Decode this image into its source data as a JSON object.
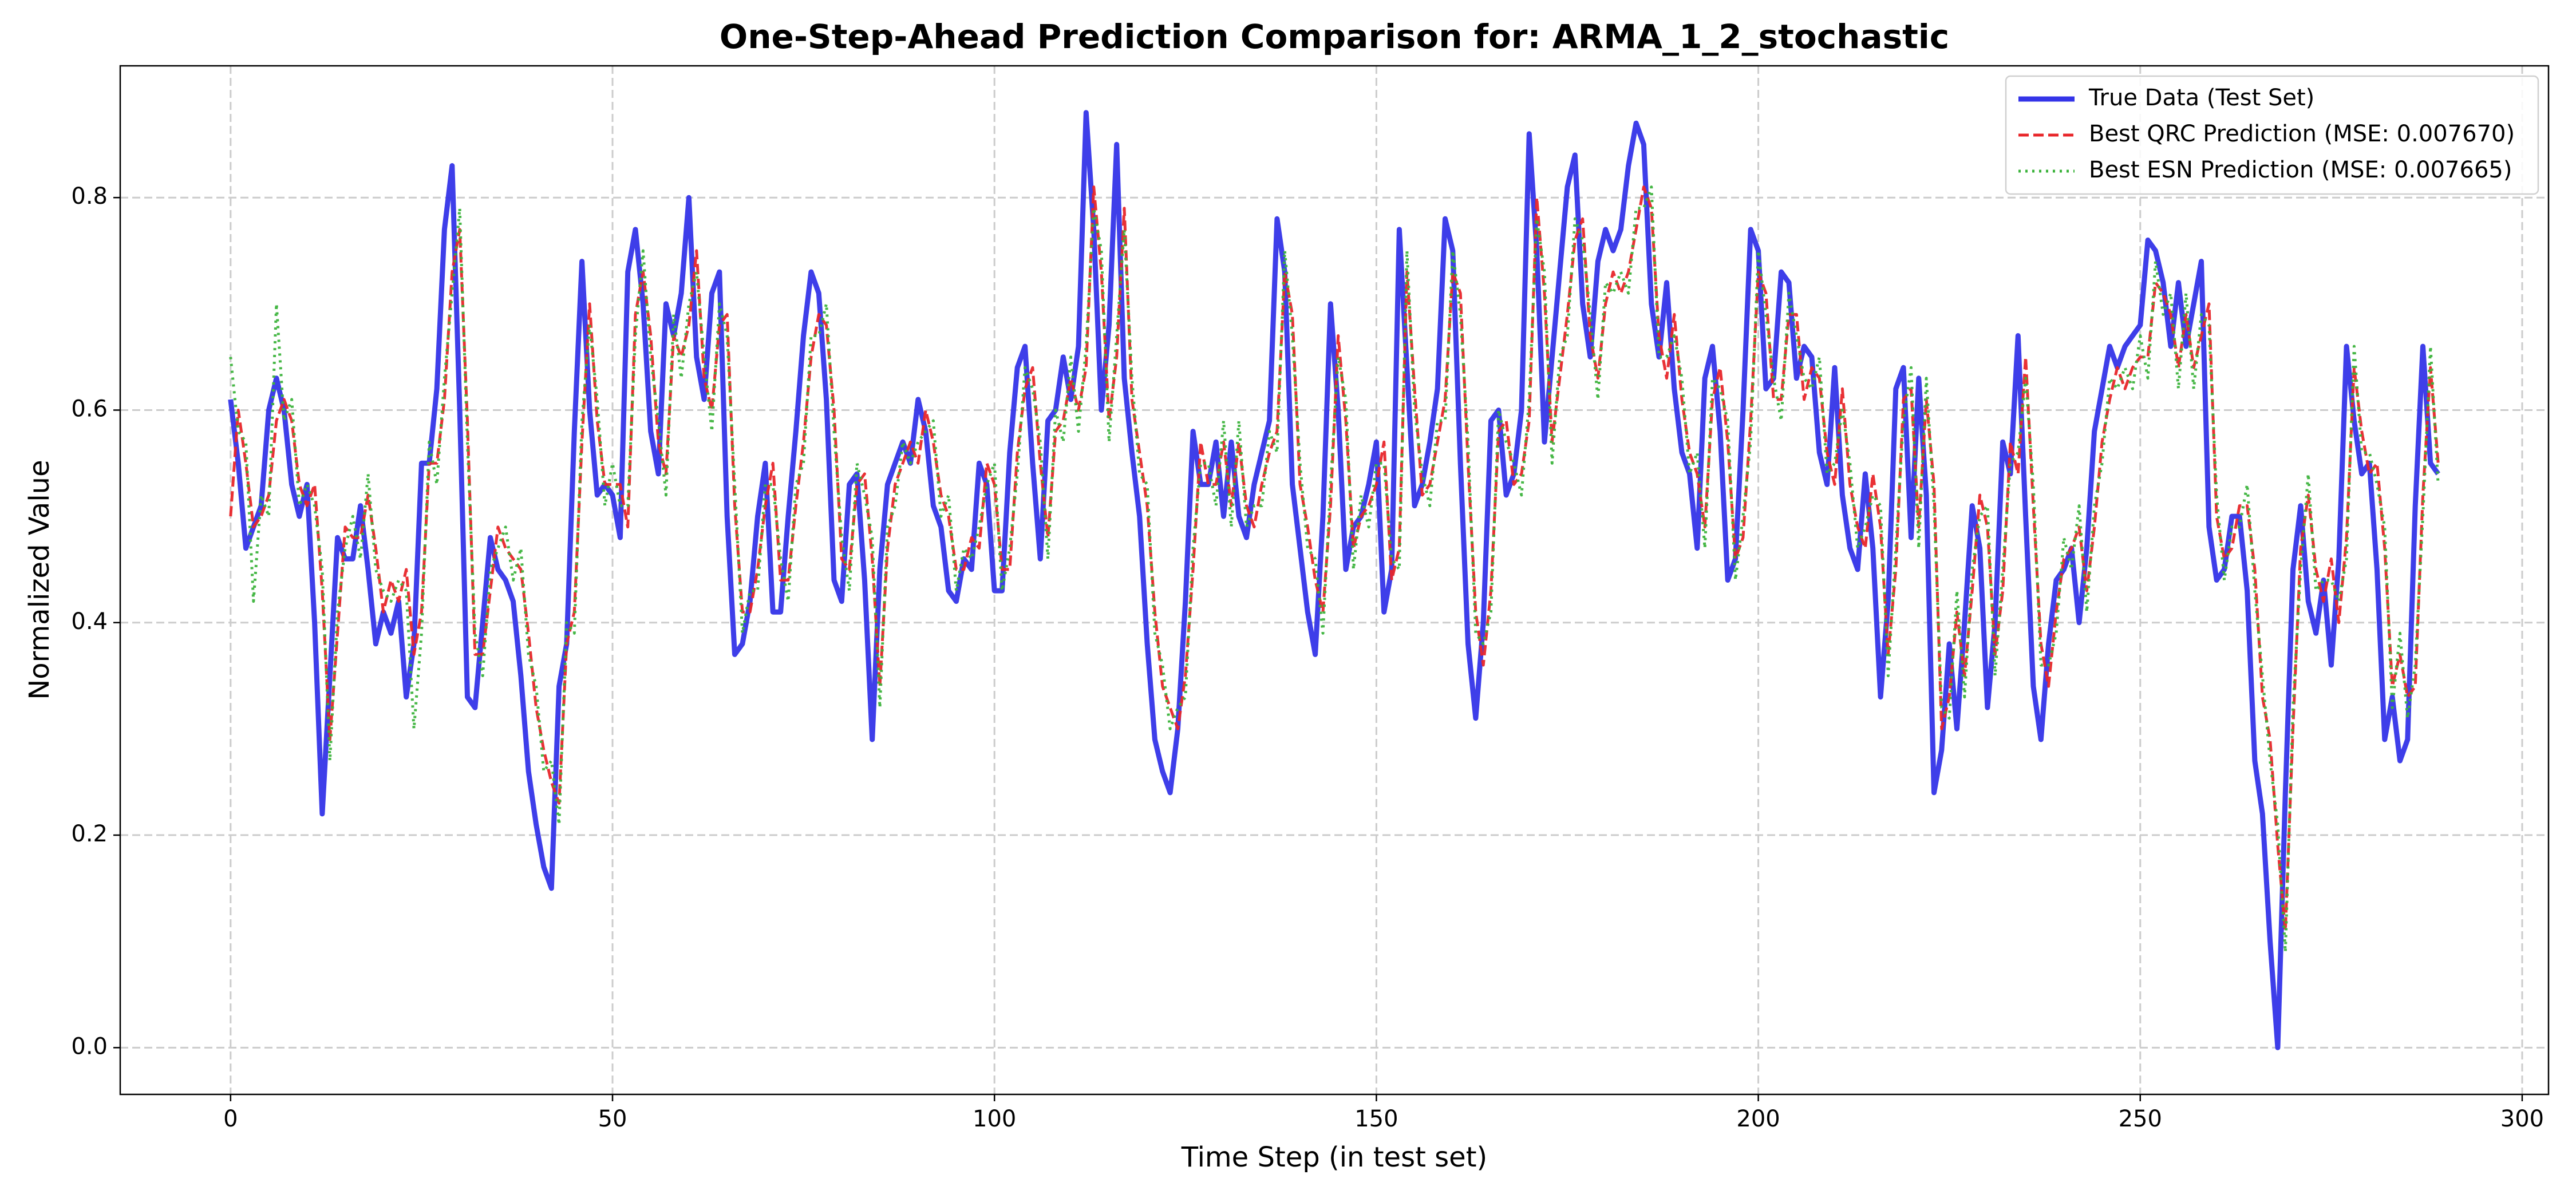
{
  "chart_data": {
    "type": "line",
    "title": "One-Step-Ahead Prediction Comparison for: ARMA_1_2_stochastic",
    "x_label": "Time Step (in test set)",
    "y_label": "Normalized Value",
    "x": [
      0,
      1,
      2,
      3,
      4,
      5,
      6,
      7,
      8,
      9,
      10,
      11,
      12,
      13,
      14,
      15,
      16,
      17,
      18,
      19,
      20,
      21,
      22,
      23,
      24,
      25,
      26,
      27,
      28,
      29,
      30,
      31,
      32,
      33,
      34,
      35,
      36,
      37,
      38,
      39,
      40,
      41,
      42,
      43,
      44,
      45,
      46,
      47,
      48,
      49,
      50,
      51,
      52,
      53,
      54,
      55,
      56,
      57,
      58,
      59,
      60,
      61,
      62,
      63,
      64,
      65,
      66,
      67,
      68,
      69,
      70,
      71,
      72,
      73,
      74,
      75,
      76,
      77,
      78,
      79,
      80,
      81,
      82,
      83,
      84,
      85,
      86,
      87,
      88,
      89,
      90,
      91,
      92,
      93,
      94,
      95,
      96,
      97,
      98,
      99,
      100,
      101,
      102,
      103,
      104,
      105,
      106,
      107,
      108,
      109,
      110,
      111,
      112,
      113,
      114,
      115,
      116,
      117,
      118,
      119,
      120,
      121,
      122,
      123,
      124,
      125,
      126,
      127,
      128,
      129,
      130,
      131,
      132,
      133,
      134,
      135,
      136,
      137,
      138,
      139,
      140,
      141,
      142,
      143,
      144,
      145,
      146,
      147,
      148,
      149,
      150,
      151,
      152,
      153,
      154,
      155,
      156,
      157,
      158,
      159,
      160,
      161,
      162,
      163,
      164,
      165,
      166,
      167,
      168,
      169,
      170,
      171,
      172,
      173,
      174,
      175,
      176,
      177,
      178,
      179,
      180,
      181,
      182,
      183,
      184,
      185,
      186,
      187,
      188,
      189,
      190,
      191,
      192,
      193,
      194,
      195,
      196,
      197,
      198,
      199,
      200,
      201,
      202,
      203,
      204,
      205,
      206,
      207,
      208,
      209,
      210,
      211,
      212,
      213,
      214,
      215,
      216,
      217,
      218,
      219,
      220,
      221,
      222,
      223,
      224,
      225,
      226,
      227,
      228,
      229,
      230,
      231,
      232,
      233,
      234,
      235,
      236,
      237,
      238,
      239,
      240,
      241,
      242,
      243,
      244,
      245,
      246,
      247,
      248,
      249,
      250,
      251,
      252,
      253,
      254,
      255,
      256,
      257,
      258,
      259,
      260,
      261,
      262,
      263,
      264,
      265,
      266,
      267,
      268,
      269,
      270,
      271,
      272,
      273,
      274,
      275,
      276,
      277,
      278,
      279,
      280,
      281,
      282,
      283,
      284,
      285,
      286,
      287,
      288,
      289
    ],
    "series": [
      {
        "name": "True Data (Test Set)",
        "color": "#3434e8",
        "linestyle": "solid",
        "values": [
          0.61,
          0.55,
          0.47,
          0.49,
          0.51,
          0.6,
          0.63,
          0.6,
          0.53,
          0.5,
          0.53,
          0.4,
          0.22,
          0.35,
          0.48,
          0.46,
          0.46,
          0.51,
          0.45,
          0.38,
          0.41,
          0.39,
          0.42,
          0.33,
          0.38,
          0.55,
          0.55,
          0.62,
          0.77,
          0.83,
          0.6,
          0.33,
          0.32,
          0.4,
          0.48,
          0.45,
          0.44,
          0.42,
          0.35,
          0.26,
          0.21,
          0.17,
          0.15,
          0.34,
          0.38,
          0.58,
          0.74,
          0.6,
          0.52,
          0.53,
          0.52,
          0.48,
          0.73,
          0.77,
          0.7,
          0.58,
          0.54,
          0.7,
          0.67,
          0.71,
          0.8,
          0.65,
          0.61,
          0.71,
          0.73,
          0.5,
          0.37,
          0.38,
          0.42,
          0.5,
          0.55,
          0.41,
          0.41,
          0.5,
          0.58,
          0.67,
          0.73,
          0.71,
          0.61,
          0.44,
          0.42,
          0.53,
          0.54,
          0.44,
          0.29,
          0.45,
          0.53,
          0.55,
          0.57,
          0.55,
          0.61,
          0.58,
          0.51,
          0.49,
          0.43,
          0.42,
          0.46,
          0.45,
          0.55,
          0.53,
          0.43,
          0.43,
          0.56,
          0.64,
          0.66,
          0.55,
          0.46,
          0.59,
          0.6,
          0.65,
          0.61,
          0.66,
          0.88,
          0.77,
          0.6,
          0.68,
          0.85,
          0.63,
          0.56,
          0.5,
          0.38,
          0.29,
          0.26,
          0.24,
          0.3,
          0.42,
          0.58,
          0.53,
          0.53,
          0.57,
          0.5,
          0.57,
          0.5,
          0.48,
          0.53,
          0.56,
          0.59,
          0.78,
          0.73,
          0.53,
          0.47,
          0.41,
          0.37,
          0.5,
          0.7,
          0.6,
          0.45,
          0.49,
          0.5,
          0.53,
          0.57,
          0.41,
          0.45,
          0.77,
          0.64,
          0.51,
          0.53,
          0.57,
          0.62,
          0.78,
          0.75,
          0.55,
          0.38,
          0.31,
          0.4,
          0.59,
          0.6,
          0.52,
          0.54,
          0.6,
          0.86,
          0.75,
          0.57,
          0.65,
          0.73,
          0.81,
          0.84,
          0.7,
          0.65,
          0.74,
          0.77,
          0.75,
          0.77,
          0.83,
          0.87,
          0.85,
          0.7,
          0.65,
          0.72,
          0.62,
          0.56,
          0.54,
          0.47,
          0.63,
          0.66,
          0.58,
          0.44,
          0.46,
          0.6,
          0.77,
          0.75,
          0.62,
          0.63,
          0.73,
          0.72,
          0.63,
          0.66,
          0.65,
          0.56,
          0.53,
          0.64,
          0.52,
          0.47,
          0.45,
          0.54,
          0.47,
          0.33,
          0.42,
          0.62,
          0.64,
          0.48,
          0.63,
          0.52,
          0.24,
          0.28,
          0.38,
          0.3,
          0.4,
          0.51,
          0.47,
          0.32,
          0.4,
          0.57,
          0.54,
          0.67,
          0.5,
          0.34,
          0.29,
          0.38,
          0.44,
          0.45,
          0.47,
          0.4,
          0.47,
          0.58,
          0.62,
          0.66,
          0.64,
          0.66,
          0.67,
          0.68,
          0.76,
          0.75,
          0.72,
          0.66,
          0.72,
          0.66,
          0.7,
          0.74,
          0.49,
          0.44,
          0.45,
          0.5,
          0.5,
          0.43,
          0.27,
          0.22,
          0.1,
          0.0,
          0.24,
          0.45,
          0.51,
          0.42,
          0.39,
          0.44,
          0.36,
          0.46,
          0.66,
          0.59,
          0.54,
          0.55,
          0.45,
          0.29,
          0.33,
          0.27,
          0.29,
          0.51,
          0.66,
          0.55,
          0.54
        ]
      },
      {
        "name": "Best QRC Prediction (MSE: 0.007670)",
        "color": "#e8262a",
        "linestyle": "dashed",
        "values": [
          0.5,
          0.6,
          0.55,
          0.49,
          0.5,
          0.52,
          0.59,
          0.61,
          0.59,
          0.53,
          0.51,
          0.53,
          0.43,
          0.29,
          0.39,
          0.49,
          0.48,
          0.48,
          0.52,
          0.47,
          0.41,
          0.44,
          0.42,
          0.45,
          0.37,
          0.41,
          0.55,
          0.55,
          0.61,
          0.73,
          0.77,
          0.59,
          0.37,
          0.37,
          0.43,
          0.49,
          0.47,
          0.46,
          0.45,
          0.39,
          0.32,
          0.28,
          0.25,
          0.23,
          0.38,
          0.41,
          0.57,
          0.7,
          0.59,
          0.53,
          0.53,
          0.53,
          0.49,
          0.69,
          0.73,
          0.67,
          0.57,
          0.54,
          0.67,
          0.65,
          0.68,
          0.75,
          0.63,
          0.6,
          0.68,
          0.69,
          0.51,
          0.41,
          0.41,
          0.45,
          0.51,
          0.55,
          0.44,
          0.44,
          0.51,
          0.57,
          0.65,
          0.69,
          0.68,
          0.6,
          0.46,
          0.45,
          0.53,
          0.54,
          0.46,
          0.34,
          0.47,
          0.53,
          0.55,
          0.57,
          0.55,
          0.6,
          0.57,
          0.52,
          0.5,
          0.45,
          0.45,
          0.48,
          0.47,
          0.55,
          0.53,
          0.45,
          0.45,
          0.56,
          0.62,
          0.64,
          0.55,
          0.48,
          0.58,
          0.59,
          0.63,
          0.6,
          0.64,
          0.81,
          0.73,
          0.59,
          0.65,
          0.79,
          0.61,
          0.56,
          0.51,
          0.41,
          0.34,
          0.32,
          0.3,
          0.35,
          0.45,
          0.57,
          0.53,
          0.53,
          0.57,
          0.51,
          0.57,
          0.51,
          0.49,
          0.53,
          0.56,
          0.58,
          0.73,
          0.69,
          0.53,
          0.49,
          0.44,
          0.41,
          0.51,
          0.67,
          0.59,
          0.47,
          0.5,
          0.51,
          0.53,
          0.57,
          0.44,
          0.47,
          0.73,
          0.62,
          0.52,
          0.53,
          0.57,
          0.61,
          0.73,
          0.71,
          0.55,
          0.41,
          0.36,
          0.43,
          0.58,
          0.59,
          0.53,
          0.54,
          0.59,
          0.8,
          0.71,
          0.57,
          0.63,
          0.69,
          0.76,
          0.78,
          0.67,
          0.63,
          0.7,
          0.73,
          0.71,
          0.73,
          0.77,
          0.81,
          0.79,
          0.67,
          0.63,
          0.69,
          0.61,
          0.56,
          0.54,
          0.49,
          0.61,
          0.64,
          0.57,
          0.46,
          0.48,
          0.59,
          0.73,
          0.71,
          0.61,
          0.61,
          0.69,
          0.69,
          0.61,
          0.64,
          0.63,
          0.56,
          0.53,
          0.62,
          0.53,
          0.49,
          0.47,
          0.54,
          0.49,
          0.37,
          0.45,
          0.61,
          0.62,
          0.49,
          0.61,
          0.53,
          0.3,
          0.33,
          0.41,
          0.35,
          0.43,
          0.52,
          0.49,
          0.37,
          0.43,
          0.57,
          0.54,
          0.65,
          0.51,
          0.38,
          0.34,
          0.41,
          0.46,
          0.47,
          0.49,
          0.43,
          0.49,
          0.57,
          0.61,
          0.64,
          0.62,
          0.64,
          0.65,
          0.65,
          0.72,
          0.71,
          0.69,
          0.64,
          0.69,
          0.64,
          0.67,
          0.7,
          0.5,
          0.46,
          0.47,
          0.51,
          0.51,
          0.45,
          0.33,
          0.29,
          0.19,
          0.11,
          0.3,
          0.47,
          0.52,
          0.45,
          0.42,
          0.46,
          0.4,
          0.48,
          0.64,
          0.58,
          0.54,
          0.55,
          0.47,
          0.34,
          0.37,
          0.33,
          0.34,
          0.52,
          0.64,
          0.55
        ]
      },
      {
        "name": "Best ESN Prediction (MSE: 0.007665)",
        "color": "#3cb33c",
        "linestyle": "dotted",
        "values": [
          0.65,
          0.58,
          0.57,
          0.42,
          0.52,
          0.5,
          0.7,
          0.59,
          0.61,
          0.51,
          0.53,
          0.51,
          0.45,
          0.27,
          0.41,
          0.47,
          0.5,
          0.46,
          0.54,
          0.45,
          0.43,
          0.42,
          0.44,
          0.43,
          0.3,
          0.39,
          0.57,
          0.53,
          0.63,
          0.71,
          0.79,
          0.57,
          0.39,
          0.35,
          0.45,
          0.47,
          0.49,
          0.44,
          0.47,
          0.37,
          0.34,
          0.26,
          0.27,
          0.21,
          0.4,
          0.39,
          0.59,
          0.68,
          0.61,
          0.51,
          0.55,
          0.51,
          0.51,
          0.67,
          0.75,
          0.65,
          0.59,
          0.52,
          0.69,
          0.63,
          0.7,
          0.73,
          0.65,
          0.58,
          0.7,
          0.67,
          0.53,
          0.39,
          0.43,
          0.43,
          0.53,
          0.53,
          0.46,
          0.42,
          0.53,
          0.55,
          0.67,
          0.67,
          0.7,
          0.58,
          0.48,
          0.43,
          0.55,
          0.52,
          0.48,
          0.32,
          0.49,
          0.51,
          0.57,
          0.55,
          0.57,
          0.58,
          0.59,
          0.5,
          0.52,
          0.43,
          0.47,
          0.46,
          0.49,
          0.53,
          0.55,
          0.43,
          0.47,
          0.54,
          0.64,
          0.62,
          0.57,
          0.46,
          0.6,
          0.57,
          0.65,
          0.58,
          0.66,
          0.79,
          0.75,
          0.57,
          0.67,
          0.77,
          0.63,
          0.54,
          0.53,
          0.39,
          0.36,
          0.3,
          0.32,
          0.33,
          0.47,
          0.55,
          0.55,
          0.51,
          0.59,
          0.49,
          0.59,
          0.49,
          0.51,
          0.51,
          0.58,
          0.56,
          0.75,
          0.67,
          0.55,
          0.47,
          0.46,
          0.39,
          0.53,
          0.65,
          0.61,
          0.45,
          0.52,
          0.49,
          0.55,
          0.55,
          0.46,
          0.45,
          0.75,
          0.6,
          0.54,
          0.51,
          0.59,
          0.59,
          0.75,
          0.69,
          0.57,
          0.39,
          0.38,
          0.41,
          0.6,
          0.57,
          0.55,
          0.52,
          0.61,
          0.78,
          0.73,
          0.55,
          0.65,
          0.67,
          0.78,
          0.76,
          0.69,
          0.61,
          0.72,
          0.71,
          0.73,
          0.71,
          0.79,
          0.79,
          0.81,
          0.65,
          0.65,
          0.67,
          0.63,
          0.54,
          0.56,
          0.47,
          0.63,
          0.62,
          0.59,
          0.44,
          0.5,
          0.57,
          0.75,
          0.69,
          0.63,
          0.59,
          0.71,
          0.67,
          0.63,
          0.62,
          0.65,
          0.54,
          0.55,
          0.6,
          0.55,
          0.47,
          0.49,
          0.52,
          0.51,
          0.35,
          0.47,
          0.59,
          0.64,
          0.47,
          0.63,
          0.51,
          0.32,
          0.31,
          0.43,
          0.33,
          0.45,
          0.5,
          0.51,
          0.35,
          0.45,
          0.55,
          0.56,
          0.63,
          0.53,
          0.36,
          0.36,
          0.39,
          0.48,
          0.45,
          0.51,
          0.41,
          0.51,
          0.55,
          0.63,
          0.62,
          0.64,
          0.62,
          0.67,
          0.63,
          0.74,
          0.69,
          0.71,
          0.62,
          0.71,
          0.62,
          0.69,
          0.68,
          0.52,
          0.44,
          0.49,
          0.49,
          0.53,
          0.43,
          0.35,
          0.27,
          0.21,
          0.09,
          0.32,
          0.45,
          0.54,
          0.43,
          0.44,
          0.44,
          0.42,
          0.46,
          0.66,
          0.56,
          0.56,
          0.53,
          0.49,
          0.32,
          0.39,
          0.31,
          0.36,
          0.5,
          0.66,
          0.53
        ]
      }
    ],
    "xlim": [
      -14.45,
      303.45
    ],
    "ylim": [
      -0.044,
      0.924
    ],
    "xticks": [
      0,
      50,
      100,
      150,
      200,
      250,
      300
    ],
    "yticks": [
      {
        "value": 0,
        "label": "0.0"
      },
      0.2,
      0.4,
      0.6,
      0.8
    ],
    "grid": true,
    "legend": "upper right"
  }
}
